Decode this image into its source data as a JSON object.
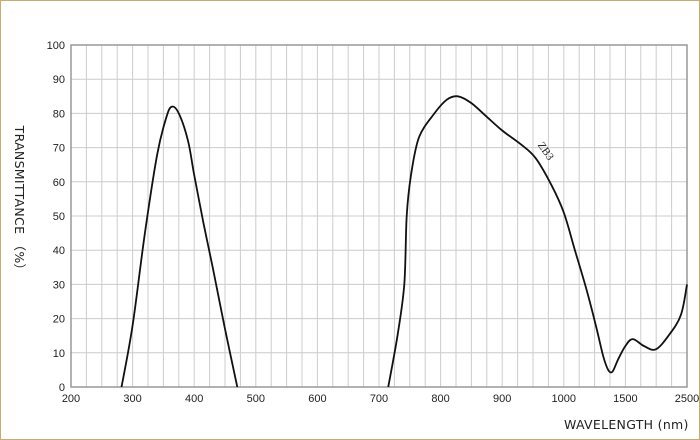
{
  "chart_data": {
    "type": "line",
    "title": "",
    "xlabel": "WAVELENGTH (nm)",
    "ylabel": "TRANSMITTANCE （%）",
    "x_ticks": [
      200,
      300,
      400,
      500,
      600,
      700,
      800,
      900,
      1000,
      1500,
      2500
    ],
    "x_scale": "piecewise (equal spacing between tick labels)",
    "y_ticks": [
      0,
      10,
      20,
      30,
      40,
      50,
      60,
      70,
      80,
      90,
      100
    ],
    "ylim": [
      0,
      100
    ],
    "xlim": [
      200,
      2500
    ],
    "grid": true,
    "line_color": "#111111",
    "grid_color": "#cccccc",
    "series": [
      {
        "name": "ZB3",
        "segments": [
          [
            [
              282,
              0
            ],
            [
              300,
              18
            ],
            [
              320,
              45
            ],
            [
              340,
              68
            ],
            [
              355,
              79
            ],
            [
              364,
              82
            ],
            [
              375,
              80
            ],
            [
              390,
              72
            ],
            [
              400,
              62
            ],
            [
              415,
              48
            ],
            [
              430,
              35
            ],
            [
              450,
              17
            ],
            [
              470,
              0
            ]
          ],
          [
            [
              715,
              0
            ],
            [
              730,
              15
            ],
            [
              741,
              30
            ],
            [
              745,
              50
            ],
            [
              752,
              62
            ],
            [
              765,
              73
            ],
            [
              790,
              80
            ],
            [
              810,
              84
            ],
            [
              828,
              85
            ],
            [
              850,
              83
            ],
            [
              875,
              79
            ],
            [
              900,
              75
            ],
            [
              930,
              71
            ],
            [
              954,
              67
            ],
            [
              980,
              59
            ],
            [
              1000,
              51
            ],
            [
              1090,
              40
            ],
            [
              1180,
              29
            ],
            [
              1260,
              18
            ],
            [
              1320,
              9
            ],
            [
              1360,
              5
            ],
            [
              1395,
              4.5
            ],
            [
              1440,
              8
            ],
            [
              1500,
              12
            ],
            [
              1620,
              14
            ],
            [
              1800,
              12
            ],
            [
              1990,
              11
            ],
            [
              2200,
              15
            ],
            [
              2400,
              21
            ],
            [
              2500,
              30
            ]
          ]
        ]
      }
    ],
    "annotations": [
      {
        "text": "ZB3",
        "x": 960,
        "y": 69
      }
    ]
  }
}
